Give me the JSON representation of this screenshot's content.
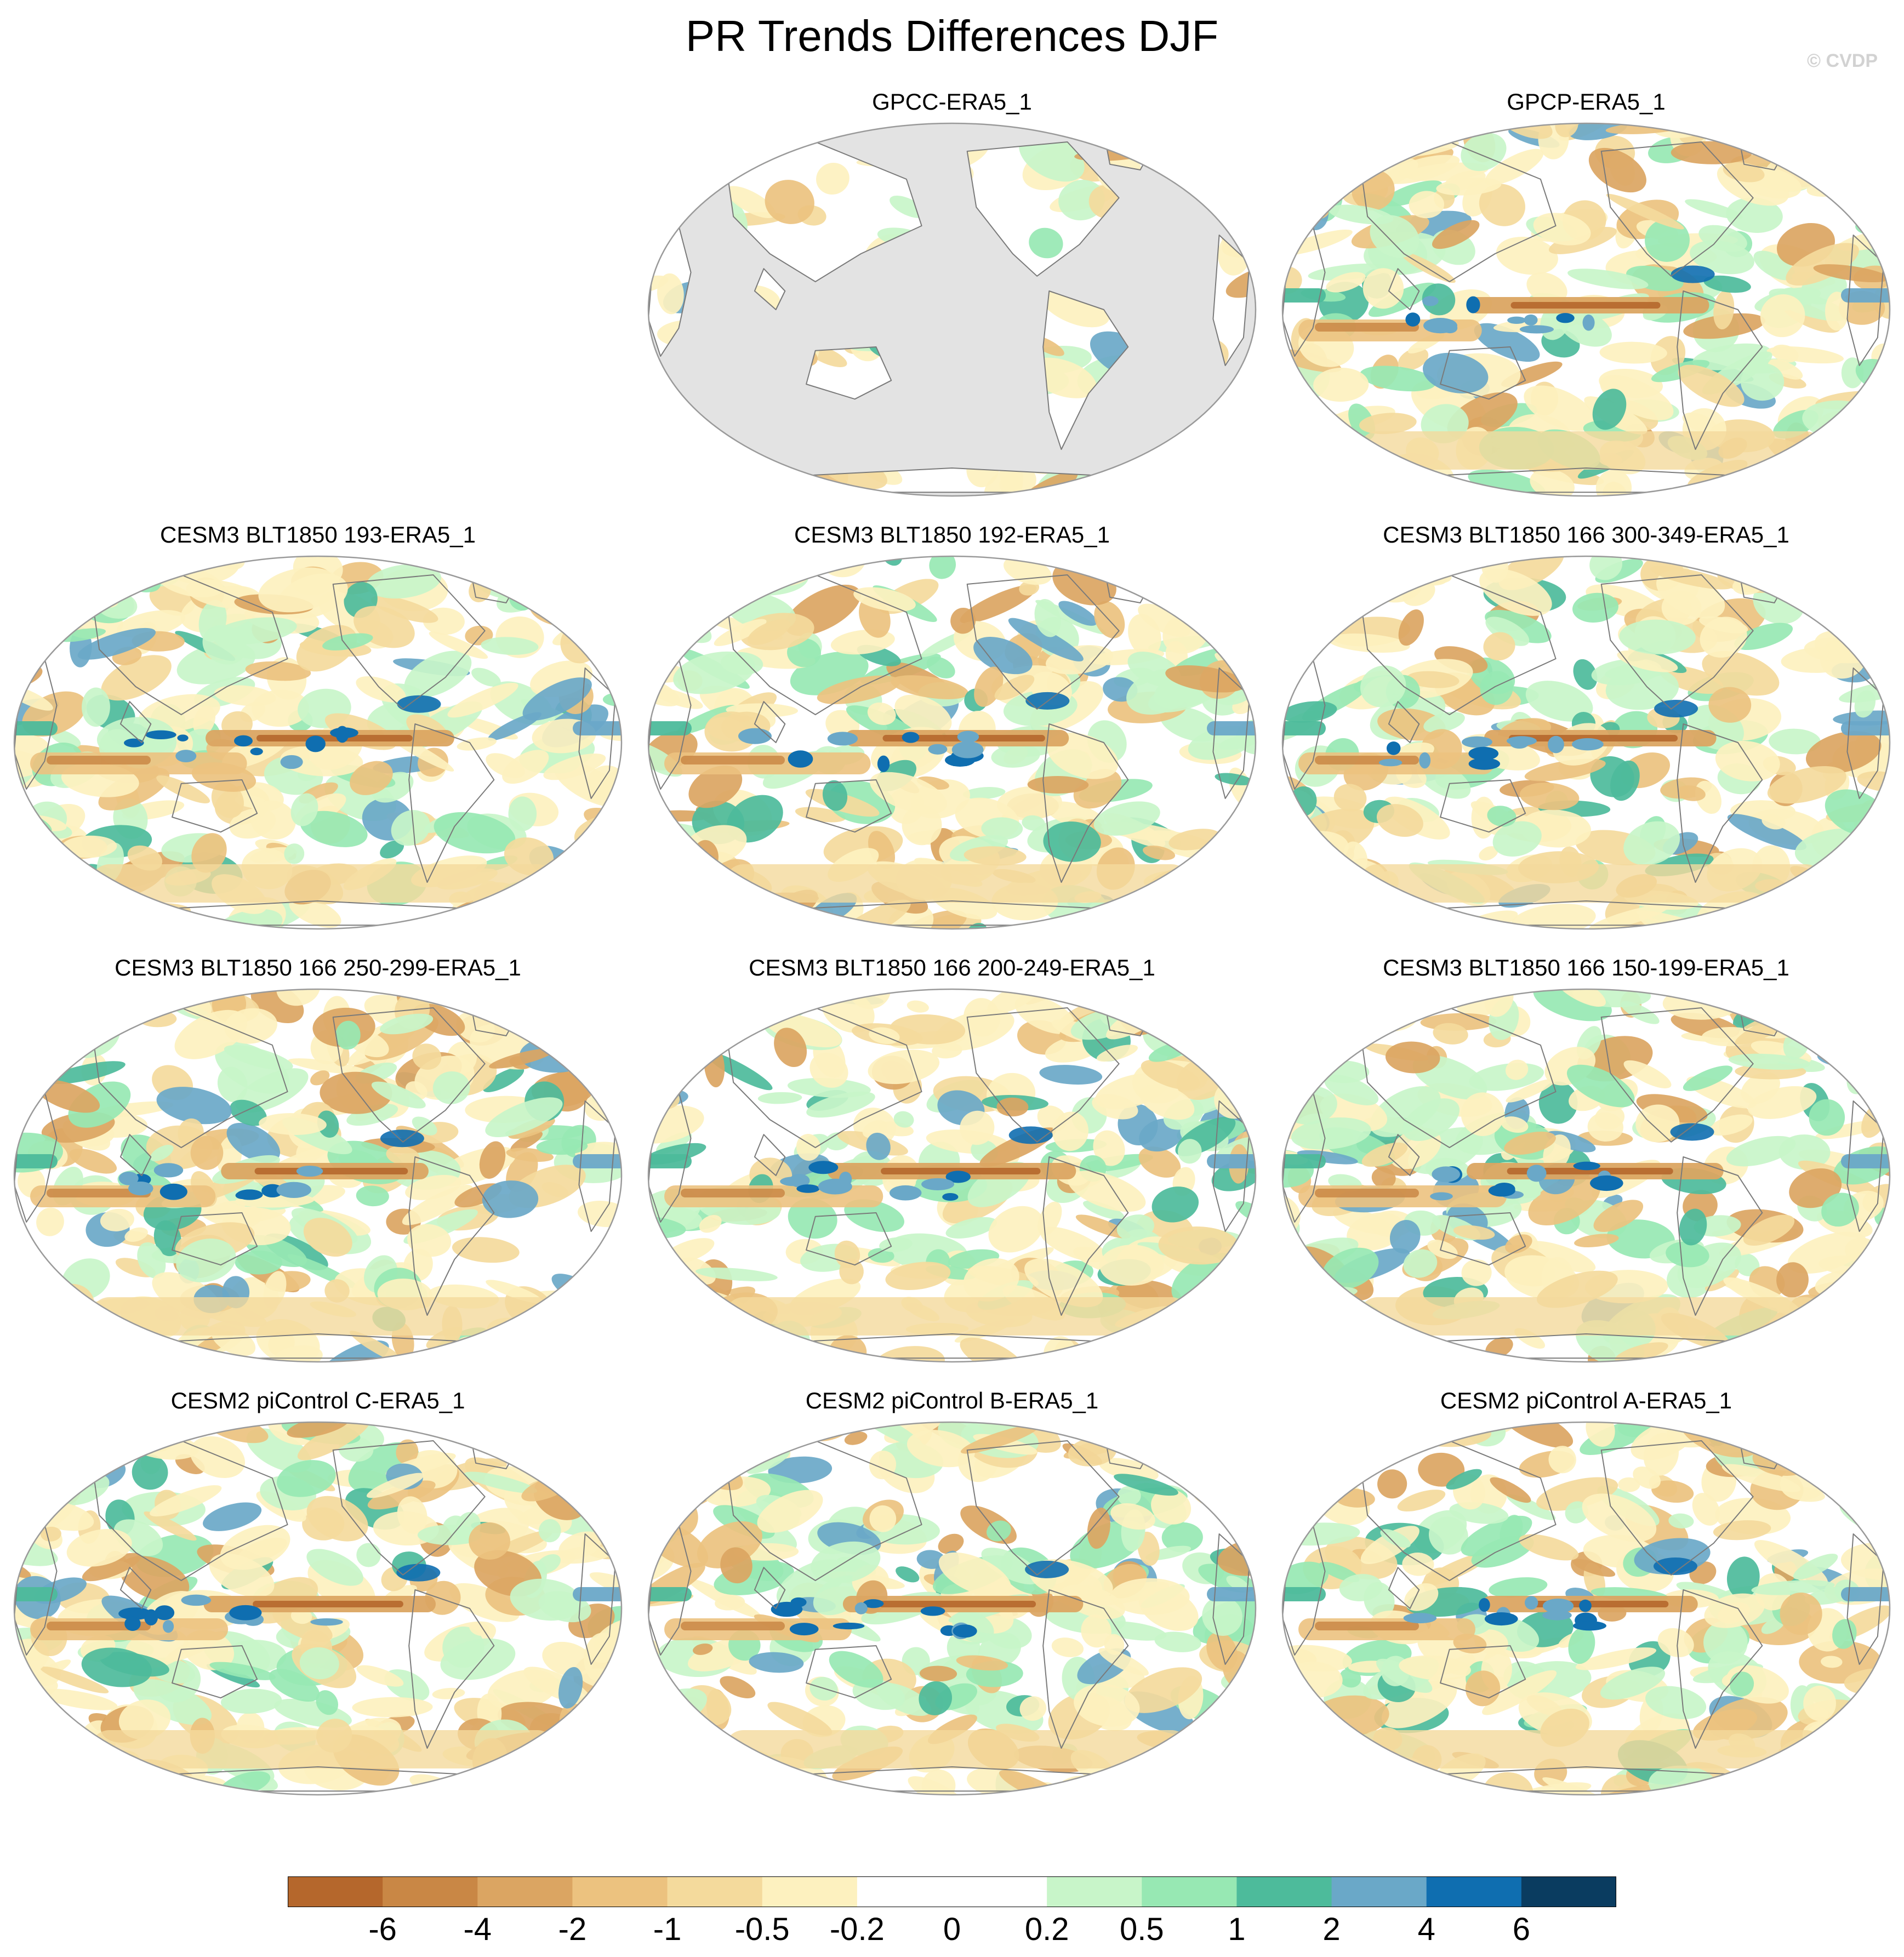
{
  "figure": {
    "title": "PR Trends Differences DJF",
    "watermark": "© CVDP"
  },
  "panels": [
    {
      "id": "gpcc",
      "title": "GPCC-ERA5_1",
      "ocean_masked": true,
      "row": 0,
      "col": 1
    },
    {
      "id": "gpcp",
      "title": "GPCP-ERA5_1",
      "ocean_masked": false,
      "row": 0,
      "col": 2
    },
    {
      "id": "blt193",
      "title": "CESM3 BLT1850 193-ERA5_1",
      "ocean_masked": false,
      "row": 1,
      "col": 0
    },
    {
      "id": "blt192",
      "title": "CESM3 BLT1850 192-ERA5_1",
      "ocean_masked": false,
      "row": 1,
      "col": 1
    },
    {
      "id": "blt300",
      "title": "CESM3 BLT1850 166 300-349-ERA5_1",
      "ocean_masked": false,
      "row": 1,
      "col": 2
    },
    {
      "id": "blt250",
      "title": "CESM3 BLT1850 166 250-299-ERA5_1",
      "ocean_masked": false,
      "row": 2,
      "col": 0
    },
    {
      "id": "blt200",
      "title": "CESM3 BLT1850 166 200-249-ERA5_1",
      "ocean_masked": false,
      "row": 2,
      "col": 1
    },
    {
      "id": "blt150",
      "title": "CESM3 BLT1850 166 150-199-ERA5_1",
      "ocean_masked": false,
      "row": 2,
      "col": 2
    },
    {
      "id": "picC",
      "title": "CESM2 piControl C-ERA5_1",
      "ocean_masked": false,
      "row": 3,
      "col": 0
    },
    {
      "id": "picB",
      "title": "CESM2 piControl B-ERA5_1",
      "ocean_masked": false,
      "row": 3,
      "col": 1
    },
    {
      "id": "picA",
      "title": "CESM2 piControl A-ERA5_1",
      "ocean_masked": false,
      "row": 3,
      "col": 2
    }
  ],
  "colorbar": {
    "colors": [
      "#b5672c",
      "#c98745",
      "#dba562",
      "#ecc27f",
      "#f4da9c",
      "#fdf1bf",
      "#ffffff",
      "#ffffff",
      "#c8f5c9",
      "#97e8b3",
      "#4dbb9b",
      "#6aa8c8",
      "#0f6eb0",
      "#0a3c60"
    ],
    "labels": [
      "-6",
      "-4",
      "-2",
      "-1",
      "-0.5",
      "-0.2",
      "0",
      "0.2",
      "0.5",
      "1",
      "2",
      "4",
      "6"
    ]
  },
  "colors": {
    "land_mask": "#e3e3e3",
    "coastline": "#7a7a7a",
    "map_border": "#9a9a9a"
  }
}
